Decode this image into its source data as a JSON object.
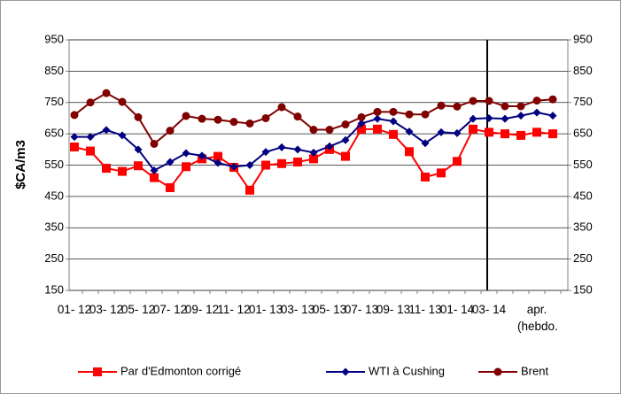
{
  "chart_data": {
    "type": "line",
    "y_label": "$CA/m3",
    "categories": [
      "01- 12",
      null,
      "03- 12",
      null,
      "05- 12",
      null,
      "07- 12",
      null,
      "09- 12",
      null,
      "11- 12",
      null,
      "01- 13",
      null,
      "03- 13",
      null,
      "05- 13",
      null,
      "07- 13",
      null,
      "09- 13",
      null,
      "11- 13",
      null,
      "01- 14",
      null,
      "03- 14",
      null,
      null,
      "apr. (hebdo.",
      null
    ],
    "series": [
      {
        "name": "Par d'Edmonton corrigé",
        "color": "#ff0000",
        "marker": "square",
        "values": [
          608,
          595,
          540,
          530,
          548,
          510,
          478,
          545,
          570,
          578,
          543,
          470,
          550,
          555,
          560,
          570,
          600,
          578,
          665,
          665,
          648,
          593,
          512,
          525,
          562,
          665,
          655,
          650,
          645,
          655,
          650
        ]
      },
      {
        "name": "WTI à Cushing",
        "color": "#000080",
        "marker": "diamond",
        "values": [
          640,
          640,
          662,
          645,
          600,
          533,
          560,
          588,
          580,
          557,
          545,
          550,
          592,
          607,
          600,
          590,
          610,
          630,
          683,
          698,
          690,
          657,
          620,
          655,
          652,
          698,
          700,
          698,
          708,
          718,
          708
        ]
      },
      {
        "name": "Brent",
        "color": "#800000",
        "marker": "circle",
        "values": [
          710,
          750,
          780,
          752,
          703,
          618,
          660,
          707,
          698,
          695,
          688,
          683,
          700,
          735,
          705,
          663,
          663,
          680,
          703,
          720,
          720,
          712,
          712,
          740,
          737,
          755,
          755,
          738,
          738,
          756,
          760
        ]
      }
    ],
    "ylim": [
      150,
      950
    ],
    "yticks": [
      150,
      250,
      350,
      450,
      550,
      650,
      750,
      850,
      950
    ],
    "y2lim": [
      150,
      950
    ],
    "y2ticks": [
      150,
      250,
      350,
      450,
      550,
      650,
      750,
      850,
      950
    ],
    "grid": true,
    "legend": "bottom"
  }
}
